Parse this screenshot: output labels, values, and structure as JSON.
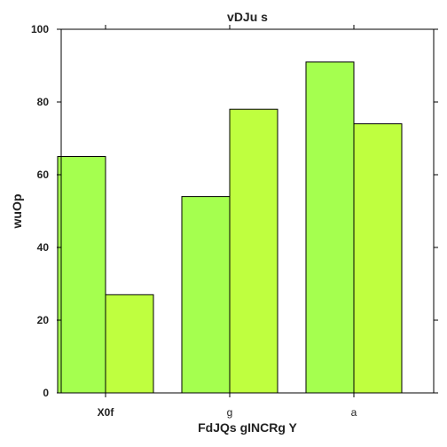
{
  "chart_data": {
    "type": "bar",
    "title": "vDJu s",
    "xlabel": "FdJQs gINCRg Y",
    "ylabel": "wuOp",
    "categories": [
      "X0f",
      "g",
      "a"
    ],
    "series": [
      {
        "values": [
          65,
          54,
          91
        ],
        "color": "#a5ff4f"
      },
      {
        "values": [
          27,
          78,
          74
        ],
        "color": "#bfff3f"
      }
    ],
    "ylim": [
      0,
      100
    ],
    "yticks": [
      0,
      20,
      40,
      60,
      80,
      100
    ],
    "grid": false,
    "legend": "none"
  }
}
